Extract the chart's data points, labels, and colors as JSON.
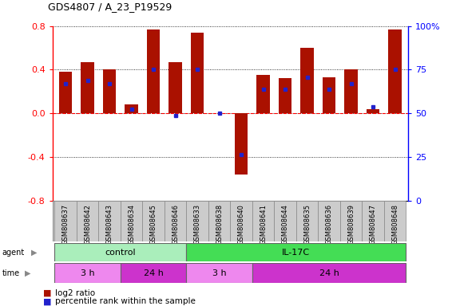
{
  "title": "GDS4807 / A_23_P19529",
  "samples": [
    "GSM808637",
    "GSM808642",
    "GSM808643",
    "GSM808634",
    "GSM808645",
    "GSM808646",
    "GSM808633",
    "GSM808638",
    "GSM808640",
    "GSM808641",
    "GSM808644",
    "GSM808635",
    "GSM808636",
    "GSM808639",
    "GSM808647",
    "GSM808648"
  ],
  "log2_ratio": [
    0.38,
    0.47,
    0.4,
    0.08,
    0.77,
    0.47,
    0.74,
    0.0,
    -0.56,
    0.35,
    0.32,
    0.6,
    0.33,
    0.4,
    0.04,
    0.77
  ],
  "percentile_mapped": [
    0.27,
    0.3,
    0.27,
    0.04,
    0.4,
    -0.02,
    0.4,
    0.0,
    -0.38,
    0.22,
    0.22,
    0.33,
    0.22,
    0.27,
    0.06,
    0.4
  ],
  "bar_color": "#aa1100",
  "dot_color": "#2222cc",
  "ylim": [
    -0.8,
    0.8
  ],
  "yticks_left": [
    -0.8,
    -0.4,
    0.0,
    0.4,
    0.8
  ],
  "yticks_right_vals": [
    -0.8,
    -0.4,
    0.0,
    0.4,
    0.8
  ],
  "yticks_right_labels": [
    "0",
    "25",
    "50",
    "75",
    "100%"
  ],
  "agent_groups": [
    {
      "label": "control",
      "start": 0,
      "end": 6,
      "color": "#aaeebb"
    },
    {
      "label": "IL-17C",
      "start": 6,
      "end": 16,
      "color": "#44dd55"
    }
  ],
  "time_groups": [
    {
      "label": "3 h",
      "start": 0,
      "end": 3,
      "color": "#ee88ee"
    },
    {
      "label": "24 h",
      "start": 3,
      "end": 6,
      "color": "#cc33cc"
    },
    {
      "label": "3 h",
      "start": 6,
      "end": 9,
      "color": "#ee88ee"
    },
    {
      "label": "24 h",
      "start": 9,
      "end": 16,
      "color": "#cc33cc"
    }
  ],
  "label_bg": "#cccccc",
  "label_border": "#888888"
}
